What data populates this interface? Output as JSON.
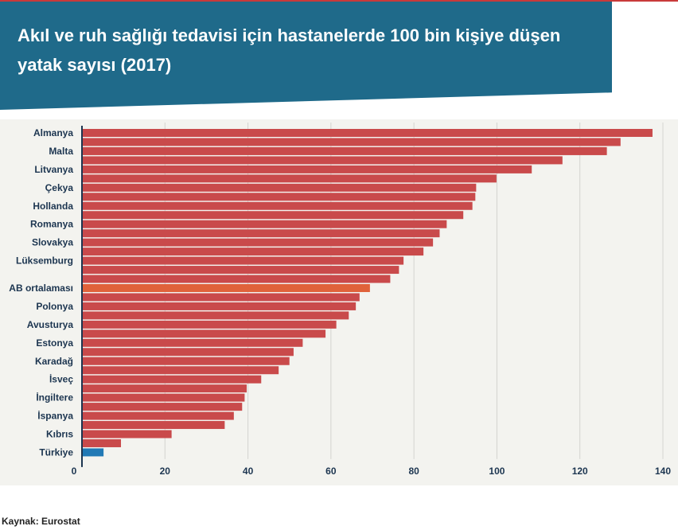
{
  "header": {
    "title": "Akıl ve ruh sağlığı tedavisi için hastanelerde 100 bin kişiye düşen yatak sayısı (2017)"
  },
  "footer": {
    "source": "Kaynak: Eurostat"
  },
  "colors": {
    "header_bg": "#1f6a8a",
    "bar_default": "#c94a4b",
    "bar_eu_average": "#e0623a",
    "bar_turkey": "#2179b5",
    "panel_bg": "#f3f3ef"
  },
  "chart_data": {
    "type": "bar",
    "orientation": "horizontal",
    "xlim": [
      0,
      140
    ],
    "xticks": [
      0,
      20,
      40,
      60,
      80,
      100,
      120,
      140
    ],
    "grid": true,
    "bars": [
      {
        "value": 137.5,
        "label": "Almanya",
        "highlight": "default"
      },
      {
        "value": 129.8,
        "label": "",
        "highlight": "default"
      },
      {
        "value": 126.5,
        "label": "Malta",
        "highlight": "default"
      },
      {
        "value": 115.8,
        "label": "",
        "highlight": "default"
      },
      {
        "value": 108.4,
        "label": "Litvanya",
        "highlight": "default"
      },
      {
        "value": 99.9,
        "label": "",
        "highlight": "default"
      },
      {
        "value": 95.0,
        "label": "Çekya",
        "highlight": "default"
      },
      {
        "value": 94.8,
        "label": "",
        "highlight": "default"
      },
      {
        "value": 94.1,
        "label": "Hollanda",
        "highlight": "default"
      },
      {
        "value": 91.9,
        "label": "",
        "highlight": "default"
      },
      {
        "value": 87.9,
        "label": "Romanya",
        "highlight": "default"
      },
      {
        "value": 86.2,
        "label": "",
        "highlight": "default"
      },
      {
        "value": 84.6,
        "label": "Slovakya",
        "highlight": "default"
      },
      {
        "value": 82.3,
        "label": "",
        "highlight": "default"
      },
      {
        "value": 77.5,
        "label": "Lüksemburg",
        "highlight": "default"
      },
      {
        "value": 76.4,
        "label": "",
        "highlight": "default"
      },
      {
        "value": 74.3,
        "label": "",
        "highlight": "default"
      },
      {
        "value": 69.4,
        "label": "AB ortalaması",
        "highlight": "eu"
      },
      {
        "value": 66.9,
        "label": "",
        "highlight": "default"
      },
      {
        "value": 66.0,
        "label": "Polonya",
        "highlight": "default"
      },
      {
        "value": 64.3,
        "label": "",
        "highlight": "default"
      },
      {
        "value": 61.3,
        "label": "Avusturya",
        "highlight": "default"
      },
      {
        "value": 58.7,
        "label": "",
        "highlight": "default"
      },
      {
        "value": 53.2,
        "label": "Estonya",
        "highlight": "default"
      },
      {
        "value": 51.0,
        "label": "",
        "highlight": "default"
      },
      {
        "value": 50.0,
        "label": "Karadağ",
        "highlight": "default"
      },
      {
        "value": 47.4,
        "label": "",
        "highlight": "default"
      },
      {
        "value": 43.2,
        "label": "İsveç",
        "highlight": "default"
      },
      {
        "value": 39.7,
        "label": "",
        "highlight": "default"
      },
      {
        "value": 39.2,
        "label": "İngiltere",
        "highlight": "default"
      },
      {
        "value": 38.6,
        "label": "",
        "highlight": "default"
      },
      {
        "value": 36.6,
        "label": "İspanya",
        "highlight": "default"
      },
      {
        "value": 34.4,
        "label": "",
        "highlight": "default"
      },
      {
        "value": 21.6,
        "label": "Kıbrıs",
        "highlight": "default"
      },
      {
        "value": 9.4,
        "label": "",
        "highlight": "default"
      },
      {
        "value": 5.2,
        "label": "Türkiye",
        "highlight": "turkey"
      }
    ]
  }
}
